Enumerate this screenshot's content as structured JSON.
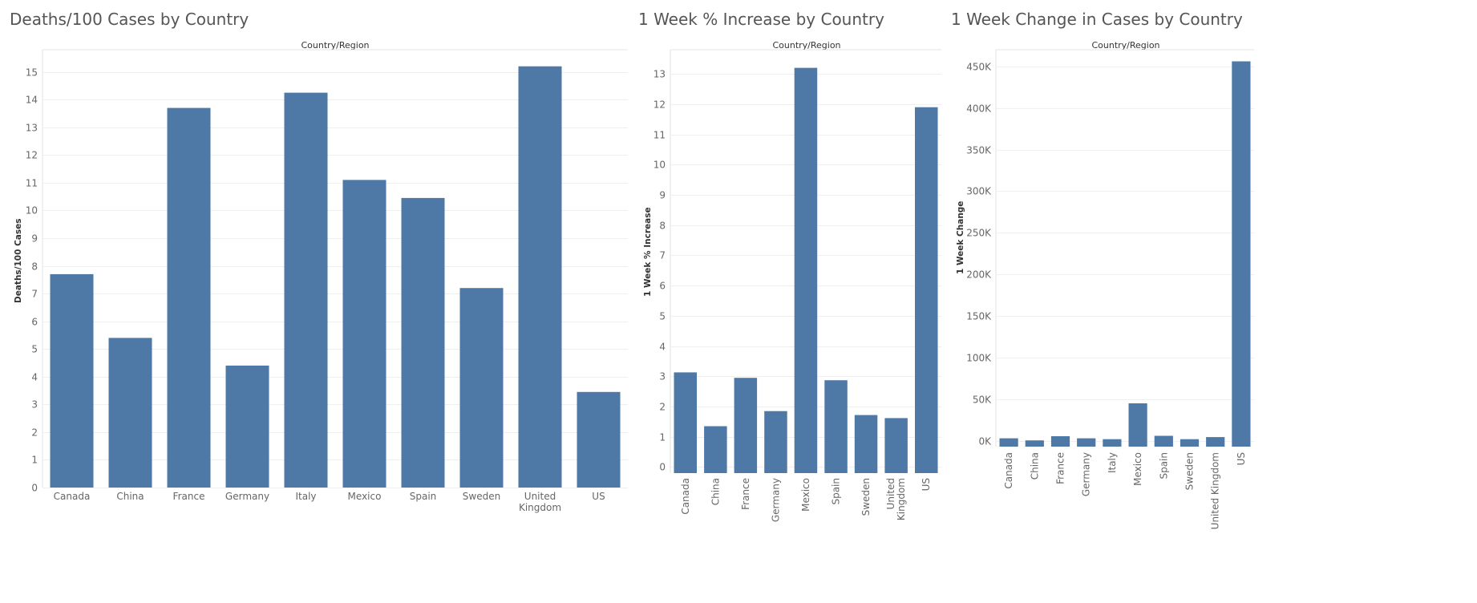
{
  "charts": [
    {
      "title": "Deaths/100 Cases by Country",
      "header": "Country/Region",
      "ylabel": "Deaths/100 Cases"
    },
    {
      "title": "1 Week % Increase by Country",
      "header": "Country/Region",
      "ylabel": "1 Week % Increase"
    },
    {
      "title": "1 Week Change in Cases by Country",
      "header": "Country/Region",
      "ylabel": "1 Week Change"
    }
  ],
  "chart_data": [
    {
      "type": "bar",
      "title": "Deaths/100 Cases by Country",
      "xlabel": "Country/Region",
      "ylabel": "Deaths/100 Cases",
      "categories": [
        "Canada",
        "China",
        "France",
        "Germany",
        "Italy",
        "Mexico",
        "Spain",
        "Sweden",
        "United Kingdom",
        "US"
      ],
      "category_labels": [
        [
          "Canada"
        ],
        [
          "China"
        ],
        [
          "France"
        ],
        [
          "Germany"
        ],
        [
          "Italy"
        ],
        [
          "Mexico"
        ],
        [
          "Spain"
        ],
        [
          "Sweden"
        ],
        [
          "United",
          "Kingdom"
        ],
        [
          "US"
        ]
      ],
      "values": [
        7.7,
        5.4,
        13.7,
        4.4,
        14.25,
        11.1,
        10.45,
        7.2,
        15.2,
        3.45
      ],
      "ylim": [
        0,
        15.8
      ],
      "yticks": [
        0,
        1,
        2,
        3,
        4,
        5,
        6,
        7,
        8,
        9,
        10,
        11,
        12,
        13,
        14,
        15
      ],
      "ytick_labels": [
        "0",
        "1",
        "2",
        "3",
        "4",
        "5",
        "6",
        "7",
        "8",
        "9",
        "10",
        "11",
        "12",
        "13",
        "14",
        "15"
      ],
      "x_label_orientation": "horizontal",
      "grid": true,
      "bar_color": "#4e79a7"
    },
    {
      "type": "bar",
      "title": "1 Week % Increase by Country",
      "xlabel": "Country/Region",
      "ylabel": "1 Week % Increase",
      "categories": [
        "Canada",
        "China",
        "France",
        "Germany",
        "Mexico",
        "Spain",
        "Sweden",
        "United Kingdom",
        "US"
      ],
      "category_labels": [
        [
          "Canada"
        ],
        [
          "China"
        ],
        [
          "France"
        ],
        [
          "Germany"
        ],
        [
          "Mexico"
        ],
        [
          "Spain"
        ],
        [
          "Sweden"
        ],
        [
          "United",
          "Kingdom"
        ],
        [
          "US"
        ]
      ],
      "values": [
        3.13,
        1.35,
        2.95,
        1.85,
        13.2,
        2.87,
        1.72,
        1.62,
        11.9
      ],
      "ylim": [
        -0.2,
        13.8
      ],
      "yticks": [
        0,
        1,
        2,
        3,
        4,
        5,
        6,
        7,
        8,
        9,
        10,
        11,
        12,
        13
      ],
      "ytick_labels": [
        "0",
        "1",
        "2",
        "3",
        "4",
        "5",
        "6",
        "7",
        "8",
        "9",
        "10",
        "11",
        "12",
        "13"
      ],
      "x_label_orientation": "vertical",
      "grid": true,
      "bar_color": "#4e79a7"
    },
    {
      "type": "bar",
      "title": "1 Week Change in Cases by Country",
      "xlabel": "Country/Region",
      "ylabel": "1 Week Change",
      "categories": [
        "Canada",
        "China",
        "France",
        "Germany",
        "Italy",
        "Mexico",
        "Spain",
        "Sweden",
        "United Kingdom",
        "US"
      ],
      "category_labels": [
        [
          "Canada"
        ],
        [
          "China"
        ],
        [
          "France"
        ],
        [
          "Germany"
        ],
        [
          "Italy"
        ],
        [
          "Mexico"
        ],
        [
          "Spain"
        ],
        [
          "Sweden"
        ],
        [
          "United Kingdom"
        ],
        [
          "US"
        ]
      ],
      "values": [
        3000,
        500,
        5500,
        3000,
        2000,
        45000,
        6000,
        2000,
        4500,
        456000
      ],
      "ylim": [
        -7000,
        470000
      ],
      "yticks": [
        0,
        50000,
        100000,
        150000,
        200000,
        250000,
        300000,
        350000,
        400000,
        450000
      ],
      "ytick_labels": [
        "0K",
        "50K",
        "100K",
        "150K",
        "200K",
        "250K",
        "300K",
        "350K",
        "400K",
        "450K"
      ],
      "x_label_orientation": "vertical",
      "grid": true,
      "bar_color": "#4e79a7"
    }
  ]
}
